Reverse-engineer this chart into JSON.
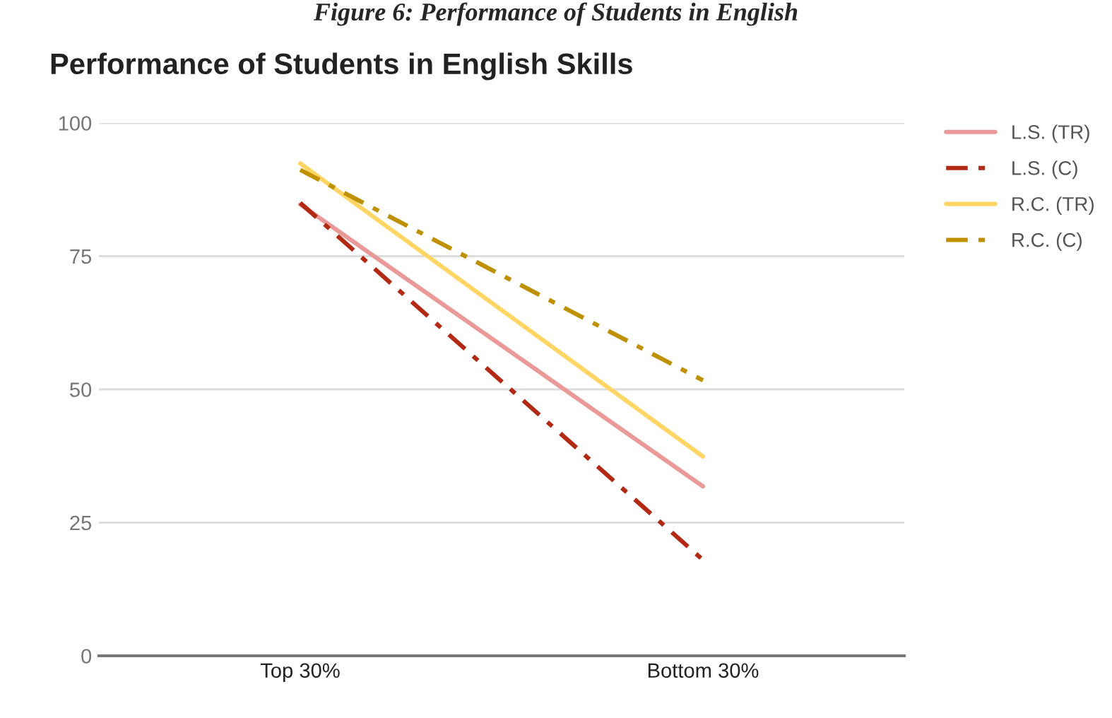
{
  "chart_data": {
    "type": "line",
    "title": "Performance of Students in English Skills",
    "annotations": [
      "Figure 6: Performance of Students in English"
    ],
    "categories": [
      "Top 30%",
      "Bottom 30%"
    ],
    "series": [
      {
        "name": "L.S. (TR)",
        "color": "#ea9999",
        "values": [
          84.7,
          31.8
        ],
        "line_style": "solid"
      },
      {
        "name": "L.S. (C)",
        "color": "#b22a14",
        "values": [
          85,
          18
        ],
        "line_style": "dashdot"
      },
      {
        "name": "R.C. (TR)",
        "color": "#ffd666",
        "values": [
          92.4,
          37.4
        ],
        "line_style": "solid"
      },
      {
        "name": "R.C. (C)",
        "color": "#bf9000",
        "values": [
          91.2,
          51.7
        ],
        "line_style": "dashdot"
      }
    ],
    "ylim": [
      0,
      100
    ],
    "yticks": [
      0,
      25,
      50,
      75,
      100
    ],
    "grid": "y",
    "legend": "top right",
    "marker": "none"
  }
}
